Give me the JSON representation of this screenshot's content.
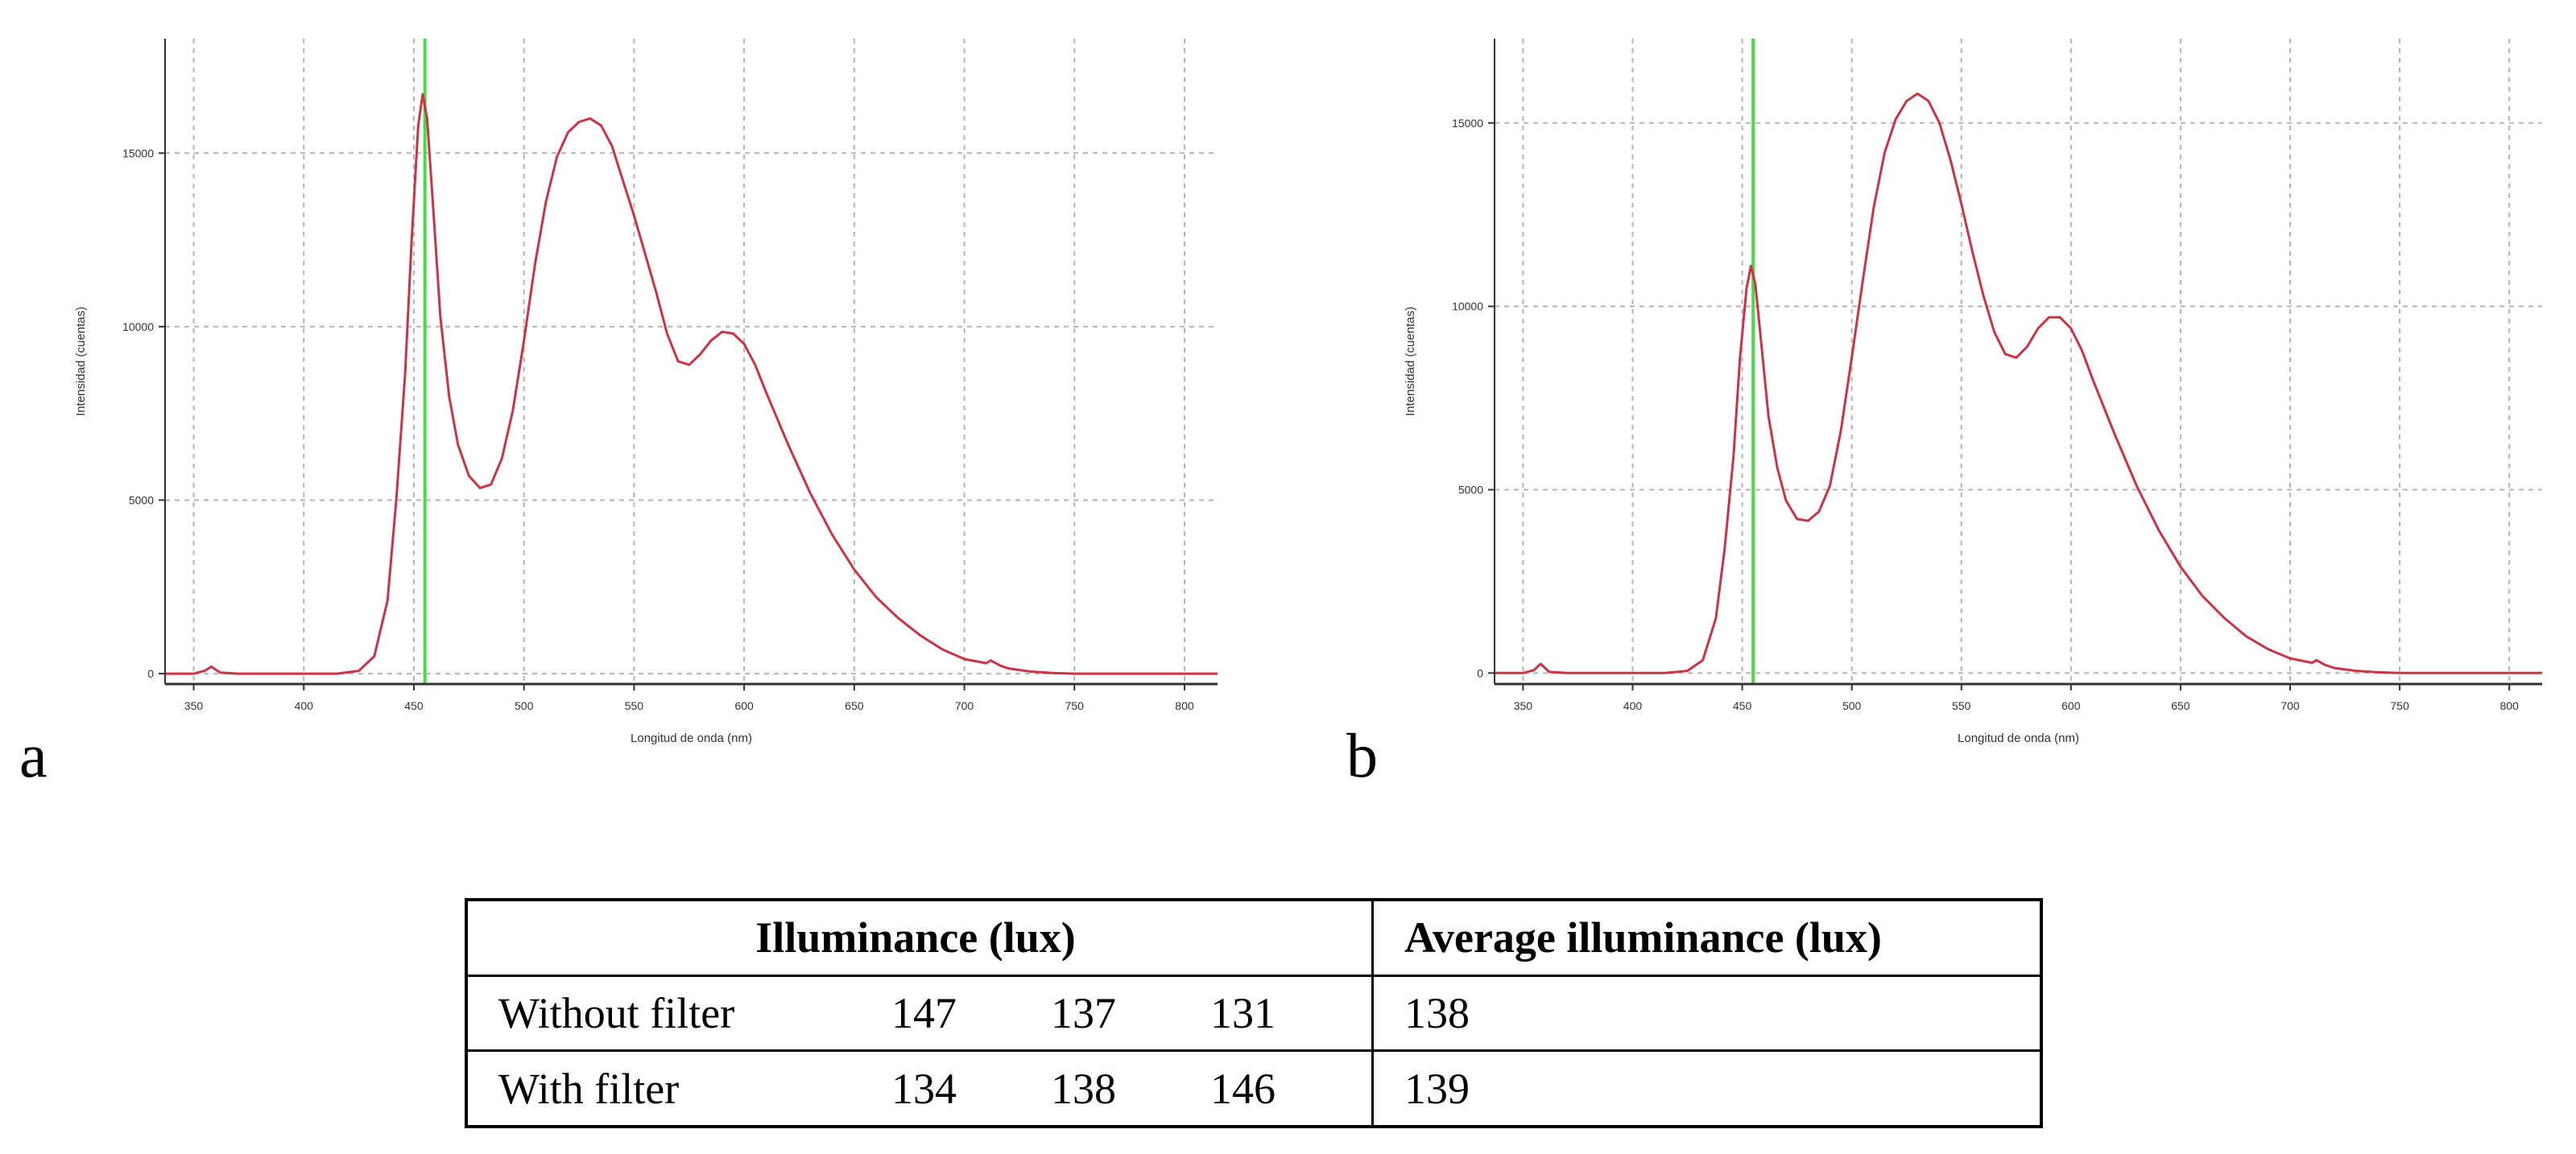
{
  "panels": {
    "a": "a",
    "b": "b"
  },
  "chart_data": [
    {
      "type": "line",
      "panel": "a",
      "xlabel": "Longitud de onda (nm)",
      "ylabel": "Intensidad (cuentas)",
      "xlim": [
        337,
        815
      ],
      "ylim": [
        -300,
        18300
      ],
      "xticks": [
        350,
        400,
        450,
        500,
        550,
        600,
        650,
        700,
        750,
        800
      ],
      "yticks": [
        0,
        5000,
        10000,
        15000
      ],
      "grid": true,
      "marker_x": 455,
      "marker_color": "#44dd44",
      "line_color": "#cc3344",
      "x": [
        337,
        350,
        355,
        358,
        362,
        370,
        400,
        415,
        425,
        432,
        438,
        442,
        446,
        449,
        452,
        454,
        456,
        459,
        462,
        466,
        470,
        475,
        480,
        485,
        490,
        495,
        500,
        505,
        510,
        515,
        520,
        525,
        530,
        535,
        540,
        545,
        550,
        555,
        560,
        565,
        570,
        575,
        580,
        585,
        590,
        595,
        600,
        605,
        610,
        620,
        630,
        640,
        650,
        660,
        670,
        680,
        690,
        700,
        710,
        712,
        716,
        720,
        730,
        740,
        750,
        760,
        780,
        800,
        815
      ],
      "y": [
        0,
        0,
        80,
        200,
        30,
        0,
        0,
        0,
        80,
        500,
        2100,
        5000,
        8600,
        12500,
        15800,
        16700,
        16000,
        13200,
        10300,
        8000,
        6600,
        5700,
        5350,
        5450,
        6200,
        7600,
        9600,
        11800,
        13600,
        14900,
        15600,
        15900,
        16000,
        15800,
        15200,
        14200,
        13200,
        12100,
        11000,
        9800,
        9000,
        8900,
        9200,
        9600,
        9850,
        9800,
        9500,
        8900,
        8100,
        6600,
        5200,
        4000,
        3000,
        2200,
        1600,
        1100,
        700,
        420,
        300,
        380,
        240,
        150,
        60,
        20,
        0,
        0,
        0,
        0,
        0
      ]
    },
    {
      "type": "line",
      "panel": "b",
      "xlabel": "Longitud de onda (nm)",
      "ylabel": "Intensidad (cuentas)",
      "xlim": [
        337,
        815
      ],
      "ylim": [
        -300,
        17300
      ],
      "xticks": [
        350,
        400,
        450,
        500,
        550,
        600,
        650,
        700,
        750,
        800
      ],
      "yticks": [
        0,
        5000,
        10000,
        15000
      ],
      "grid": true,
      "marker_x": 455,
      "marker_color": "#44dd44",
      "line_color": "#cc3344",
      "x": [
        337,
        350,
        355,
        358,
        362,
        370,
        400,
        415,
        425,
        432,
        438,
        442,
        446,
        449,
        452,
        454,
        456,
        459,
        462,
        466,
        470,
        475,
        480,
        485,
        490,
        495,
        500,
        505,
        510,
        515,
        520,
        525,
        530,
        535,
        540,
        545,
        550,
        555,
        560,
        565,
        570,
        575,
        580,
        585,
        590,
        595,
        600,
        605,
        610,
        620,
        630,
        640,
        650,
        660,
        670,
        680,
        690,
        700,
        710,
        712,
        716,
        720,
        730,
        740,
        750,
        760,
        780,
        800,
        815
      ],
      "y": [
        0,
        0,
        80,
        250,
        30,
        0,
        0,
        0,
        60,
        350,
        1500,
        3400,
        5900,
        8600,
        10500,
        11100,
        10600,
        8800,
        7000,
        5600,
        4700,
        4200,
        4150,
        4400,
        5100,
        6600,
        8600,
        10700,
        12700,
        14200,
        15100,
        15600,
        15800,
        15600,
        15000,
        14000,
        12800,
        11500,
        10300,
        9300,
        8700,
        8600,
        8900,
        9400,
        9700,
        9700,
        9400,
        8800,
        8000,
        6500,
        5100,
        3900,
        2900,
        2100,
        1500,
        1000,
        650,
        400,
        280,
        350,
        220,
        140,
        60,
        20,
        0,
        0,
        0,
        0,
        0
      ]
    }
  ],
  "table": {
    "header": {
      "illuminance": "Illuminance (lux)",
      "average": "Average illuminance (lux)"
    },
    "rows": [
      {
        "label": "Without filter",
        "v1": "147",
        "v2": "137",
        "v3": "131",
        "avg": "138"
      },
      {
        "label": "With filter",
        "v1": "134",
        "v2": "138",
        "v3": "146",
        "avg": "139"
      }
    ]
  }
}
